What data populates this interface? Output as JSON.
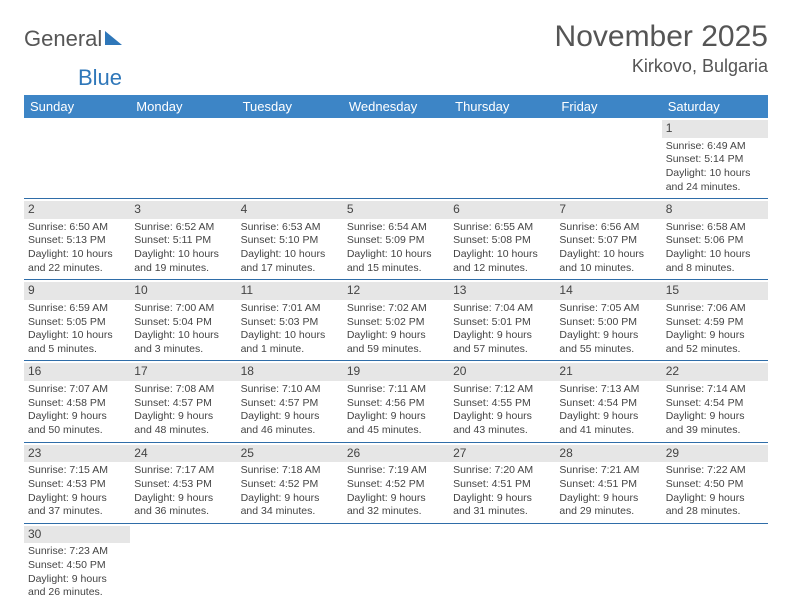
{
  "logo": {
    "text1": "General",
    "text2": "Blue"
  },
  "title": "November 2025",
  "location": "Kirkovo, Bulgaria",
  "dow": [
    "Sunday",
    "Monday",
    "Tuesday",
    "Wednesday",
    "Thursday",
    "Friday",
    "Saturday"
  ],
  "colors": {
    "header_bg": "#3d85c6",
    "header_text": "#ffffff",
    "daynum_bg": "#e6e6e6",
    "week_border": "#2f6da8",
    "logo_blue": "#2f77b9",
    "text": "#444444"
  },
  "weeks": [
    [
      null,
      null,
      null,
      null,
      null,
      null,
      {
        "n": "1",
        "sr": "Sunrise: 6:49 AM",
        "ss": "Sunset: 5:14 PM",
        "dl": "Daylight: 10 hours and 24 minutes."
      }
    ],
    [
      {
        "n": "2",
        "sr": "Sunrise: 6:50 AM",
        "ss": "Sunset: 5:13 PM",
        "dl": "Daylight: 10 hours and 22 minutes."
      },
      {
        "n": "3",
        "sr": "Sunrise: 6:52 AM",
        "ss": "Sunset: 5:11 PM",
        "dl": "Daylight: 10 hours and 19 minutes."
      },
      {
        "n": "4",
        "sr": "Sunrise: 6:53 AM",
        "ss": "Sunset: 5:10 PM",
        "dl": "Daylight: 10 hours and 17 minutes."
      },
      {
        "n": "5",
        "sr": "Sunrise: 6:54 AM",
        "ss": "Sunset: 5:09 PM",
        "dl": "Daylight: 10 hours and 15 minutes."
      },
      {
        "n": "6",
        "sr": "Sunrise: 6:55 AM",
        "ss": "Sunset: 5:08 PM",
        "dl": "Daylight: 10 hours and 12 minutes."
      },
      {
        "n": "7",
        "sr": "Sunrise: 6:56 AM",
        "ss": "Sunset: 5:07 PM",
        "dl": "Daylight: 10 hours and 10 minutes."
      },
      {
        "n": "8",
        "sr": "Sunrise: 6:58 AM",
        "ss": "Sunset: 5:06 PM",
        "dl": "Daylight: 10 hours and 8 minutes."
      }
    ],
    [
      {
        "n": "9",
        "sr": "Sunrise: 6:59 AM",
        "ss": "Sunset: 5:05 PM",
        "dl": "Daylight: 10 hours and 5 minutes."
      },
      {
        "n": "10",
        "sr": "Sunrise: 7:00 AM",
        "ss": "Sunset: 5:04 PM",
        "dl": "Daylight: 10 hours and 3 minutes."
      },
      {
        "n": "11",
        "sr": "Sunrise: 7:01 AM",
        "ss": "Sunset: 5:03 PM",
        "dl": "Daylight: 10 hours and 1 minute."
      },
      {
        "n": "12",
        "sr": "Sunrise: 7:02 AM",
        "ss": "Sunset: 5:02 PM",
        "dl": "Daylight: 9 hours and 59 minutes."
      },
      {
        "n": "13",
        "sr": "Sunrise: 7:04 AM",
        "ss": "Sunset: 5:01 PM",
        "dl": "Daylight: 9 hours and 57 minutes."
      },
      {
        "n": "14",
        "sr": "Sunrise: 7:05 AM",
        "ss": "Sunset: 5:00 PM",
        "dl": "Daylight: 9 hours and 55 minutes."
      },
      {
        "n": "15",
        "sr": "Sunrise: 7:06 AM",
        "ss": "Sunset: 4:59 PM",
        "dl": "Daylight: 9 hours and 52 minutes."
      }
    ],
    [
      {
        "n": "16",
        "sr": "Sunrise: 7:07 AM",
        "ss": "Sunset: 4:58 PM",
        "dl": "Daylight: 9 hours and 50 minutes."
      },
      {
        "n": "17",
        "sr": "Sunrise: 7:08 AM",
        "ss": "Sunset: 4:57 PM",
        "dl": "Daylight: 9 hours and 48 minutes."
      },
      {
        "n": "18",
        "sr": "Sunrise: 7:10 AM",
        "ss": "Sunset: 4:57 PM",
        "dl": "Daylight: 9 hours and 46 minutes."
      },
      {
        "n": "19",
        "sr": "Sunrise: 7:11 AM",
        "ss": "Sunset: 4:56 PM",
        "dl": "Daylight: 9 hours and 45 minutes."
      },
      {
        "n": "20",
        "sr": "Sunrise: 7:12 AM",
        "ss": "Sunset: 4:55 PM",
        "dl": "Daylight: 9 hours and 43 minutes."
      },
      {
        "n": "21",
        "sr": "Sunrise: 7:13 AM",
        "ss": "Sunset: 4:54 PM",
        "dl": "Daylight: 9 hours and 41 minutes."
      },
      {
        "n": "22",
        "sr": "Sunrise: 7:14 AM",
        "ss": "Sunset: 4:54 PM",
        "dl": "Daylight: 9 hours and 39 minutes."
      }
    ],
    [
      {
        "n": "23",
        "sr": "Sunrise: 7:15 AM",
        "ss": "Sunset: 4:53 PM",
        "dl": "Daylight: 9 hours and 37 minutes."
      },
      {
        "n": "24",
        "sr": "Sunrise: 7:17 AM",
        "ss": "Sunset: 4:53 PM",
        "dl": "Daylight: 9 hours and 36 minutes."
      },
      {
        "n": "25",
        "sr": "Sunrise: 7:18 AM",
        "ss": "Sunset: 4:52 PM",
        "dl": "Daylight: 9 hours and 34 minutes."
      },
      {
        "n": "26",
        "sr": "Sunrise: 7:19 AM",
        "ss": "Sunset: 4:52 PM",
        "dl": "Daylight: 9 hours and 32 minutes."
      },
      {
        "n": "27",
        "sr": "Sunrise: 7:20 AM",
        "ss": "Sunset: 4:51 PM",
        "dl": "Daylight: 9 hours and 31 minutes."
      },
      {
        "n": "28",
        "sr": "Sunrise: 7:21 AM",
        "ss": "Sunset: 4:51 PM",
        "dl": "Daylight: 9 hours and 29 minutes."
      },
      {
        "n": "29",
        "sr": "Sunrise: 7:22 AM",
        "ss": "Sunset: 4:50 PM",
        "dl": "Daylight: 9 hours and 28 minutes."
      }
    ],
    [
      {
        "n": "30",
        "sr": "Sunrise: 7:23 AM",
        "ss": "Sunset: 4:50 PM",
        "dl": "Daylight: 9 hours and 26 minutes."
      },
      null,
      null,
      null,
      null,
      null,
      null
    ]
  ]
}
